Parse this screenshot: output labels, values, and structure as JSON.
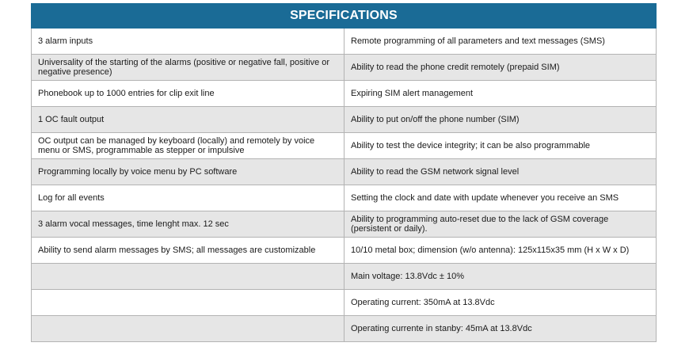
{
  "title": "SPECIFICATIONS",
  "colors": {
    "header_bg": "#1a6b96",
    "row_alt_bg": "#e6e6e6",
    "border": "#b3b3b3"
  },
  "rows": [
    {
      "left": "3 alarm inputs",
      "right": "Remote programming of all parameters and text messages (SMS)"
    },
    {
      "left": "Universality of the starting of the alarms (positive or negative fall, positive or negative presence)",
      "right": "Ability to read the phone credit remotely (prepaid SIM)"
    },
    {
      "left": "Phonebook up to 1000 entries for clip exit line",
      "right": "Expiring SIM alert management"
    },
    {
      "left": "1 OC fault output",
      "right": "Ability to put on/off the phone number (SIM)"
    },
    {
      "left": "OC output can be managed by keyboard (locally) and remotely by voice menu or SMS, programmable as stepper or impulsive",
      "right": "Ability to test the device integrity; it can be also programmable"
    },
    {
      "left": "Programming locally by voice menu by PC software",
      "right": "Ability to read the GSM network signal level"
    },
    {
      "left": "Log for all events",
      "right": "Setting the clock and date with update whenever you receive an SMS"
    },
    {
      "left": "3 alarm vocal messages, time lenght max. 12 sec",
      "right": "Ability to programming auto-reset due to the lack of GSM coverage (persistent or daily)."
    },
    {
      "left": "Ability to send alarm messages by SMS; all messages are customizable",
      "right": "10/10 metal box; dimension (w/o antenna): 125x115x35 mm (H x W x D)"
    },
    {
      "left": "",
      "right": "Main voltage: 13.8Vdc ± 10%"
    },
    {
      "left": "",
      "right": "Operating current: 350mA at 13.8Vdc"
    },
    {
      "left": "",
      "right": "Operating currente in stanby: 45mA at 13.8Vdc"
    }
  ]
}
